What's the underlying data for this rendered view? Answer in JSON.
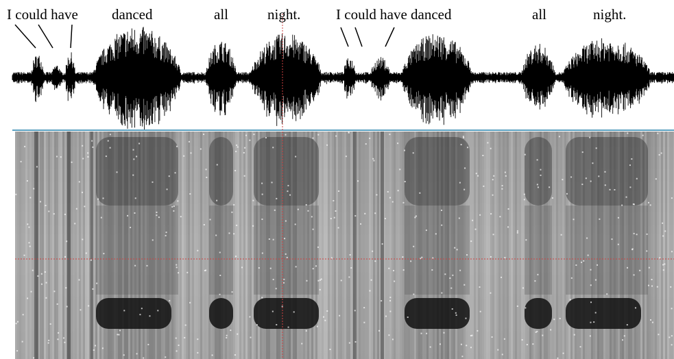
{
  "labels": [
    "I could have",
    "danced",
    "all",
    "night.",
    "I could have danced",
    "all",
    "night."
  ]
}
